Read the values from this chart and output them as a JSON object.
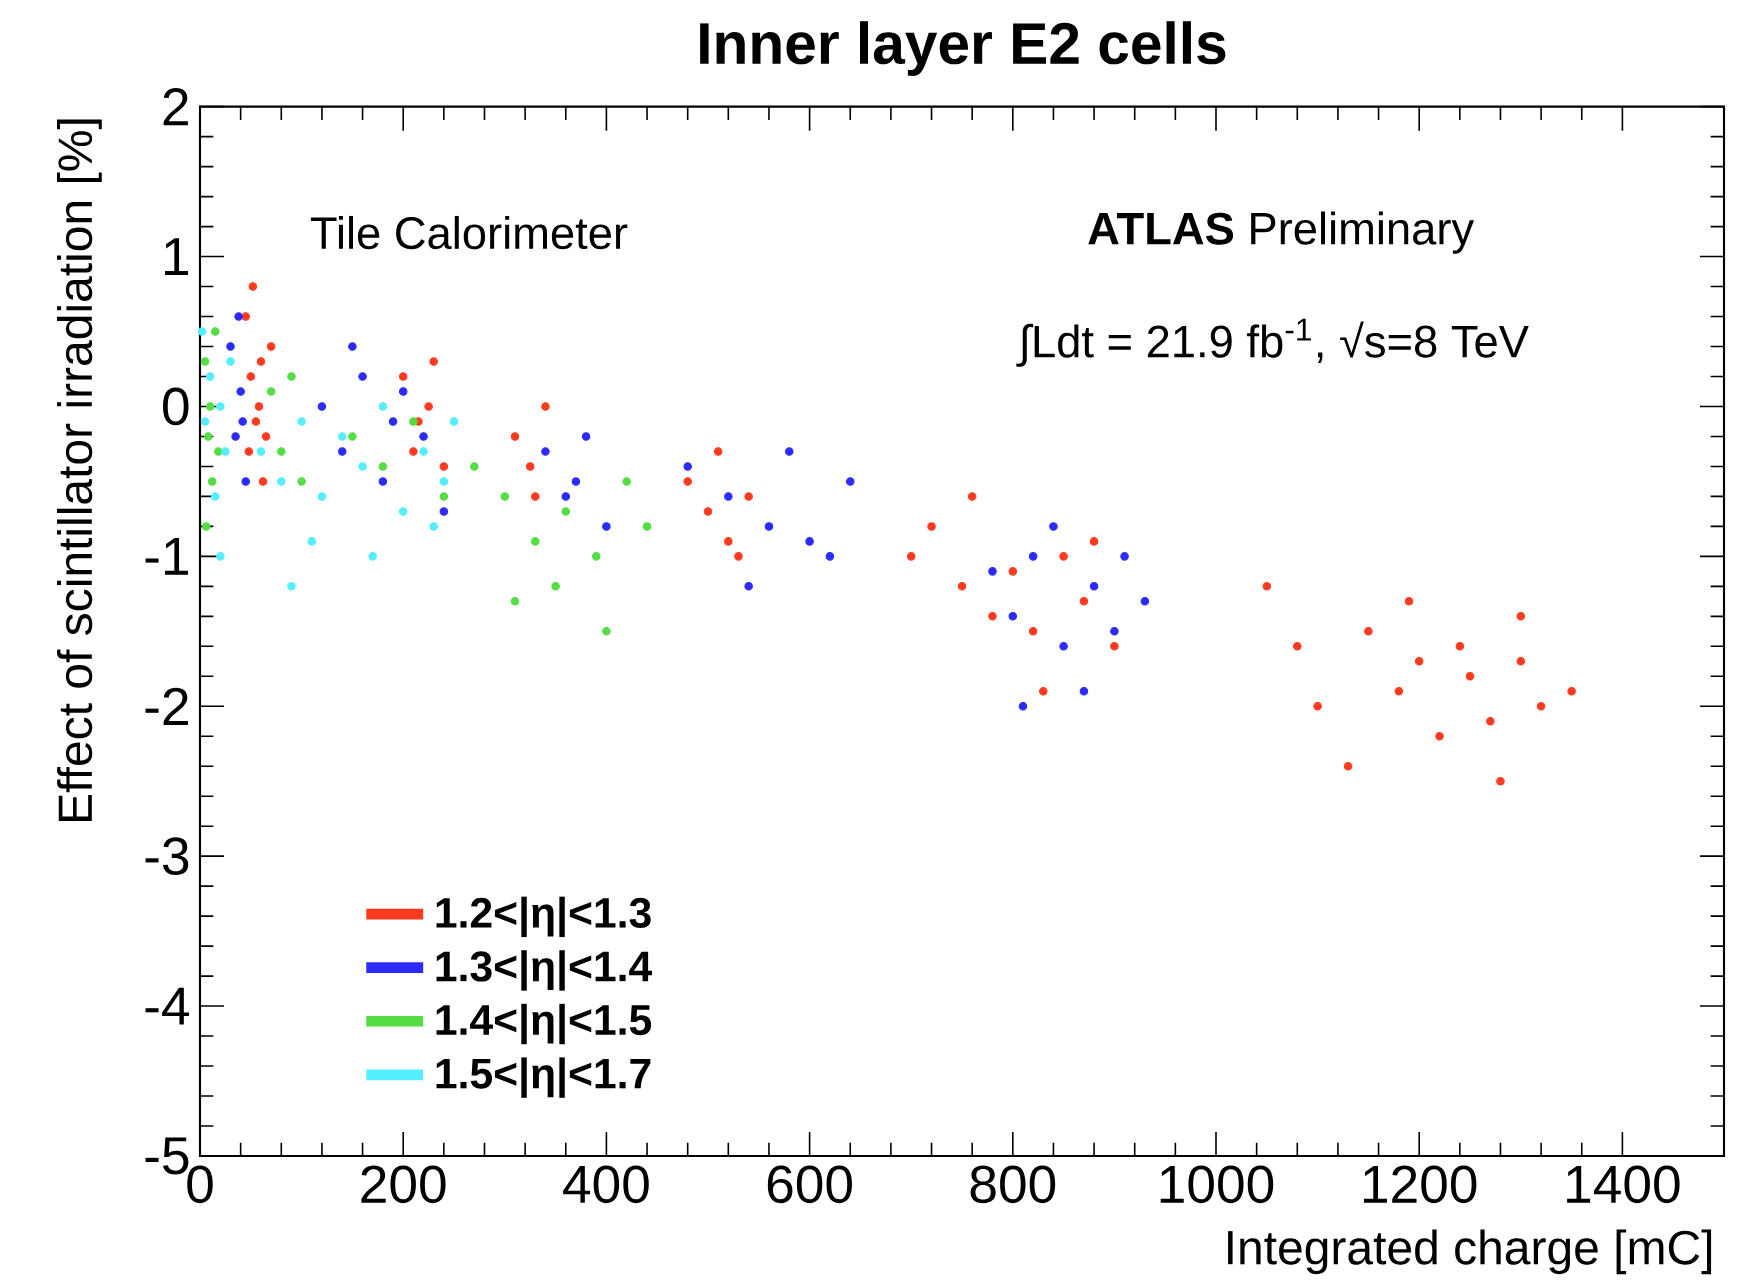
{
  "chart_data": {
    "type": "scatter",
    "title": "Inner layer E2 cells",
    "xlabel": "Integrated charge [mC]",
    "ylabel": "Effect of scintillator irradiation [%]",
    "xlim": [
      0,
      1500
    ],
    "ylim": [
      -5,
      2
    ],
    "xticks": [
      0,
      200,
      400,
      600,
      800,
      1000,
      1200,
      1400
    ],
    "yticks": [
      -5,
      -4,
      -3,
      -2,
      -1,
      0,
      1,
      2
    ],
    "legend": "bottom left",
    "annotations": [
      "Tile Calorimeter",
      "**ATLAS** Preliminary",
      "∫Ldt = 21.9 fb$^{-1}$, √s=8 TeV"
    ],
    "series": [
      {
        "name": "1.2<|η|<1.3",
        "color": "#ff3b1f",
        "x": [
          45,
          50,
          55,
          60,
          62,
          48,
          58,
          52,
          65,
          70,
          200,
          210,
          225,
          240,
          230,
          215,
          310,
          325,
          340,
          330,
          480,
          500,
          520,
          540,
          510,
          530,
          700,
          720,
          750,
          780,
          800,
          820,
          850,
          870,
          900,
          760,
          830,
          880,
          1050,
          1080,
          1100,
          1150,
          1180,
          1200,
          1220,
          1250,
          1280,
          1300,
          1320,
          1350,
          1130,
          1240,
          1270,
          1190,
          1300
        ],
        "values": [
          0.6,
          0.2,
          -0.1,
          0.3,
          -0.5,
          -0.3,
          0.0,
          0.8,
          -0.2,
          0.4,
          0.2,
          -0.3,
          0.0,
          -0.4,
          0.3,
          -0.1,
          -0.2,
          -0.4,
          0.0,
          -0.6,
          -0.5,
          -0.7,
          -0.9,
          -0.6,
          -0.3,
          -1.0,
          -1.0,
          -0.8,
          -1.2,
          -1.4,
          -1.1,
          -1.5,
          -1.0,
          -1.3,
          -1.6,
          -0.6,
          -1.9,
          -0.9,
          -1.2,
          -1.6,
          -2.0,
          -1.5,
          -1.9,
          -1.7,
          -2.2,
          -1.8,
          -2.5,
          -1.4,
          -2.0,
          -1.9,
          -2.4,
          -1.6,
          -2.1,
          -1.3,
          -1.7
        ]
      },
      {
        "name": "1.3<|η|<1.4",
        "color": "#2b2bff",
        "x": [
          30,
          35,
          40,
          45,
          38,
          42,
          120,
          140,
          160,
          180,
          200,
          220,
          240,
          150,
          190,
          340,
          360,
          380,
          400,
          370,
          480,
          520,
          560,
          600,
          640,
          540,
          580,
          620,
          780,
          800,
          820,
          850,
          880,
          900,
          930,
          840,
          870,
          810,
          910
        ],
        "values": [
          0.4,
          -0.2,
          0.1,
          -0.5,
          0.6,
          -0.1,
          0.0,
          -0.3,
          0.2,
          -0.5,
          0.1,
          -0.2,
          -0.7,
          0.4,
          -0.1,
          -0.3,
          -0.6,
          -0.2,
          -0.8,
          -0.5,
          -0.4,
          -0.6,
          -0.8,
          -0.9,
          -0.5,
          -1.2,
          -0.3,
          -1.0,
          -1.1,
          -1.4,
          -1.0,
          -1.6,
          -1.2,
          -1.5,
          -1.3,
          -0.8,
          -1.9,
          -2.0,
          -1.0
        ]
      },
      {
        "name": "1.4<|η|<1.5",
        "color": "#55dd44",
        "x": [
          5,
          8,
          10,
          12,
          15,
          18,
          6,
          70,
          80,
          90,
          100,
          150,
          180,
          210,
          240,
          270,
          300,
          330,
          360,
          390,
          420,
          440,
          310,
          350,
          400
        ],
        "values": [
          0.3,
          -0.2,
          0.0,
          -0.5,
          0.5,
          -0.3,
          -0.8,
          0.1,
          -0.3,
          0.2,
          -0.5,
          -0.2,
          -0.4,
          -0.1,
          -0.6,
          -0.4,
          -0.6,
          -0.9,
          -0.7,
          -1.0,
          -0.5,
          -0.8,
          -1.3,
          -1.2,
          -1.5
        ]
      },
      {
        "name": "1.5<|η|<1.7",
        "color": "#55eeff",
        "x": [
          2,
          5,
          10,
          15,
          20,
          25,
          30,
          60,
          80,
          100,
          120,
          140,
          160,
          180,
          200,
          220,
          240,
          250,
          110,
          170,
          230,
          20,
          90
        ],
        "values": [
          0.5,
          -0.1,
          0.2,
          -0.6,
          0.0,
          -0.3,
          0.3,
          -0.3,
          -0.5,
          -0.1,
          -0.6,
          -0.2,
          -0.4,
          0.0,
          -0.7,
          -0.3,
          -0.5,
          -0.1,
          -0.9,
          -1.0,
          -0.8,
          -1.0,
          -1.2
        ]
      }
    ]
  }
}
